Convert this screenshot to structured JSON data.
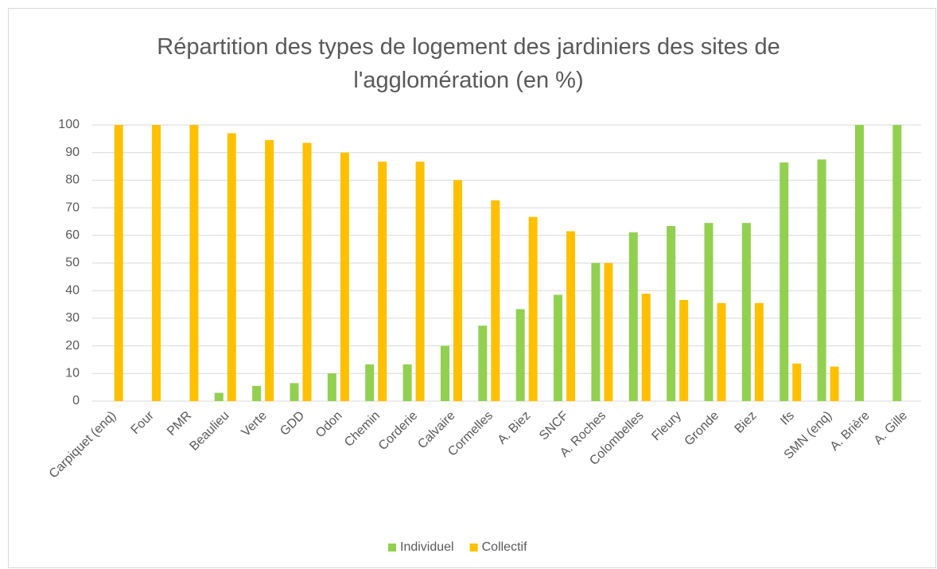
{
  "chart_data": {
    "type": "bar",
    "title": "Répartition des types de logement des jardiniers des sites de l'agglomération (en %)",
    "categories": [
      "Carpiquet (enq)",
      "Four",
      "PMR",
      "Beaulieu",
      "Verte",
      "GDD",
      "Odon",
      "Chemin",
      "Corderie",
      "Calvaire",
      "Cormelles",
      "A. Biez",
      "SNCF",
      "A. Roches",
      "Colombelles",
      "Fleury",
      "Gronde",
      "Biez",
      "Ifs",
      "SMN (enq)",
      "A. Brière",
      "A. Gille"
    ],
    "series": [
      {
        "name": "Individuel",
        "color": "#92d050",
        "values": [
          0,
          0,
          0,
          3,
          5.5,
          6.5,
          10,
          13.3,
          13.3,
          20,
          27.3,
          33.3,
          38.5,
          50,
          61.1,
          63.4,
          64.5,
          64.5,
          86.4,
          87.5,
          100,
          100
        ]
      },
      {
        "name": "Collectif",
        "color": "#ffc000",
        "values": [
          100,
          100,
          100,
          97,
          94.5,
          93.5,
          90,
          86.7,
          86.7,
          80,
          72.7,
          66.7,
          61.5,
          50,
          38.9,
          36.6,
          35.5,
          35.5,
          13.6,
          12.5,
          0,
          0
        ]
      }
    ],
    "ylim": [
      0,
      100
    ],
    "yticks": [
      0,
      10,
      20,
      30,
      40,
      50,
      60,
      70,
      80,
      90,
      100
    ],
    "grid": true,
    "legend": "bottom"
  }
}
